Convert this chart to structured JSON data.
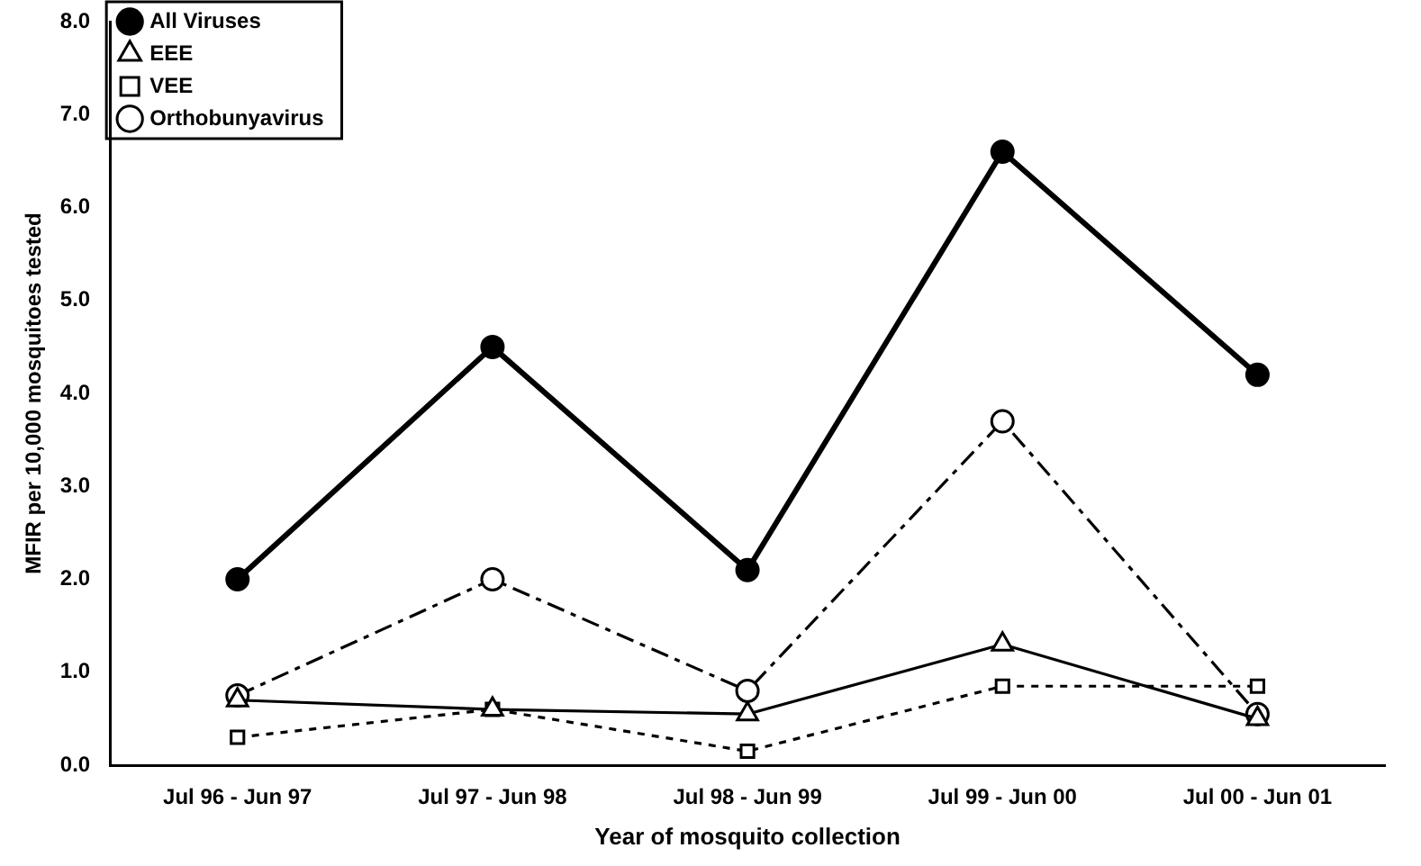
{
  "chart_data": {
    "type": "line",
    "xlabel": "Year of mosquito collection",
    "ylabel": "MFIR per 10,000 mosquitoes tested",
    "categories": [
      "Jul 96 - Jun 97",
      "Jul 97 - Jun 98",
      "Jul 98 - Jun 99",
      "Jul 99 - Jun 00",
      "Jul 00 - Jun 01"
    ],
    "ylim": [
      0,
      8
    ],
    "yticks": [
      {
        "value": 0,
        "label": "0.0"
      },
      {
        "value": 1,
        "label": "1.0"
      },
      {
        "value": 2,
        "label": "2.0"
      },
      {
        "value": 3,
        "label": "3.0"
      },
      {
        "value": 4,
        "label": "4.0"
      },
      {
        "value": 5,
        "label": "5.0"
      },
      {
        "value": 6,
        "label": "6.0"
      },
      {
        "value": 7,
        "label": "7.0"
      },
      {
        "value": 8,
        "label": "8.0"
      }
    ],
    "grid": false,
    "legend": "top left",
    "series": [
      {
        "name": "All Viruses",
        "color": "#000000",
        "values": [
          2.0,
          4.5,
          2.1,
          6.6,
          4.2
        ],
        "marker": "circle",
        "line_style": "solid"
      },
      {
        "name": "EEE",
        "color": "#000000",
        "values": [
          0.7,
          0.6,
          0.55,
          1.3,
          0.5
        ],
        "marker": "triangle",
        "line_style": "solid"
      },
      {
        "name": "VEE",
        "color": "#000000",
        "values": [
          0.3,
          0.6,
          0.15,
          0.85,
          0.85
        ],
        "marker": "square",
        "line_style": "dotted"
      },
      {
        "name": "Orthobunyavirus",
        "color": "#000000",
        "values": [
          0.75,
          2.0,
          0.8,
          3.7,
          0.55
        ],
        "marker": "circle",
        "line_style": "dashed"
      }
    ]
  }
}
